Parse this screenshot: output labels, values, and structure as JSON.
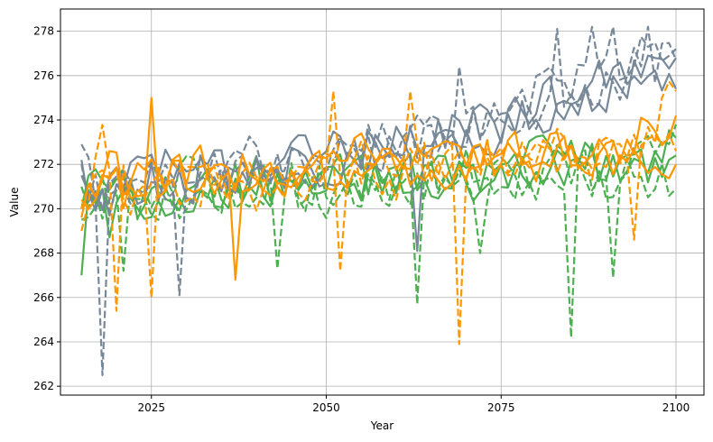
{
  "chart_data": {
    "type": "line",
    "title": "",
    "xlabel": "Year",
    "ylabel": "Value",
    "xlim": [
      2012,
      2104
    ],
    "ylim": [
      261.6,
      279.0
    ],
    "xticks": [
      2025,
      2050,
      2075,
      2100
    ],
    "yticks": [
      262,
      264,
      266,
      268,
      270,
      272,
      274,
      276,
      278
    ],
    "grid": true,
    "legend": "none",
    "colors": {
      "green": "#4caf50",
      "orange": "#ff9800",
      "gray": "#778899"
    },
    "series": [
      {
        "color": "#4caf50",
        "style": "solid",
        "anchors": [
          [
            2015,
            267.0
          ],
          [
            2016,
            270.8
          ],
          [
            2017,
            271.4
          ],
          [
            2019,
            269.5
          ],
          [
            2022,
            270.6
          ],
          [
            2025,
            270.2
          ],
          [
            2030,
            271.0
          ],
          [
            2035,
            270.8
          ],
          [
            2040,
            271.3
          ],
          [
            2045,
            271.0
          ],
          [
            2050,
            270.9
          ],
          [
            2055,
            271.3
          ],
          [
            2060,
            271.5
          ],
          [
            2065,
            271.4
          ],
          [
            2070,
            271.8
          ],
          [
            2075,
            271.5
          ],
          [
            2080,
            272.0
          ],
          [
            2085,
            271.6
          ],
          [
            2090,
            272.0
          ],
          [
            2095,
            271.8
          ],
          [
            2100,
            272.4
          ]
        ]
      },
      {
        "color": "#4caf50",
        "style": "solid",
        "anchors": [
          [
            2015,
            270.0
          ],
          [
            2018,
            271.0
          ],
          [
            2022,
            270.4
          ],
          [
            2025,
            270.8
          ],
          [
            2030,
            270.5
          ],
          [
            2035,
            271.2
          ],
          [
            2040,
            270.8
          ],
          [
            2045,
            271.4
          ],
          [
            2050,
            271.0
          ],
          [
            2055,
            271.4
          ],
          [
            2060,
            271.2
          ],
          [
            2065,
            271.6
          ],
          [
            2070,
            271.3
          ],
          [
            2075,
            271.9
          ],
          [
            2080,
            271.5
          ],
          [
            2085,
            272.1
          ],
          [
            2090,
            271.8
          ],
          [
            2095,
            272.3
          ],
          [
            2100,
            273.2
          ]
        ]
      },
      {
        "color": "#4caf50",
        "style": "dashed",
        "anchors": [
          [
            2015,
            271.0
          ],
          [
            2018,
            270.3
          ],
          [
            2022,
            270.8
          ],
          [
            2025,
            270.1
          ],
          [
            2030,
            271.3
          ],
          [
            2035,
            270.5
          ],
          [
            2040,
            271.1
          ],
          [
            2045,
            270.7
          ],
          [
            2050,
            271.3
          ],
          [
            2055,
            271.0
          ],
          [
            2060,
            271.5
          ],
          [
            2065,
            271.1
          ],
          [
            2070,
            271.7
          ],
          [
            2075,
            271.3
          ],
          [
            2080,
            271.8
          ],
          [
            2085,
            271.2
          ],
          [
            2090,
            271.7
          ],
          [
            2095,
            271.5
          ],
          [
            2100,
            270.9
          ]
        ],
        "dips": [
          [
            2063,
            265.7
          ],
          [
            2085,
            264.2
          ],
          [
            2091,
            266.9
          ]
        ]
      },
      {
        "color": "#4caf50",
        "style": "dashed",
        "anchors": [
          [
            2015,
            269.5
          ],
          [
            2018,
            270.6
          ],
          [
            2022,
            270.0
          ],
          [
            2025,
            270.9
          ],
          [
            2030,
            270.4
          ],
          [
            2035,
            271.0
          ],
          [
            2040,
            270.6
          ],
          [
            2045,
            271.2
          ],
          [
            2050,
            270.8
          ],
          [
            2055,
            271.3
          ],
          [
            2060,
            271.0
          ],
          [
            2065,
            271.5
          ],
          [
            2070,
            271.2
          ],
          [
            2075,
            271.7
          ],
          [
            2080,
            271.3
          ],
          [
            2085,
            271.8
          ],
          [
            2090,
            271.5
          ],
          [
            2095,
            272.0
          ],
          [
            2100,
            273.8
          ]
        ],
        "dips": [
          [
            2021,
            267.2
          ],
          [
            2043,
            267.3
          ],
          [
            2072,
            268.0
          ]
        ]
      },
      {
        "color": "#ff9800",
        "style": "solid",
        "anchors": [
          [
            2015,
            269.6
          ],
          [
            2018,
            271.5
          ],
          [
            2022,
            270.8
          ],
          [
            2025,
            271.5
          ],
          [
            2030,
            271.2
          ],
          [
            2035,
            271.6
          ],
          [
            2040,
            271.3
          ],
          [
            2045,
            271.8
          ],
          [
            2050,
            271.5
          ],
          [
            2055,
            272.0
          ],
          [
            2060,
            271.7
          ],
          [
            2065,
            272.2
          ],
          [
            2070,
            271.9
          ],
          [
            2075,
            272.4
          ],
          [
            2080,
            272.1
          ],
          [
            2085,
            272.6
          ],
          [
            2090,
            272.4
          ],
          [
            2095,
            272.9
          ],
          [
            2100,
            272.0
          ]
        ],
        "dips": [
          [
            2037,
            266.8
          ]
        ]
      },
      {
        "color": "#ff9800",
        "style": "solid",
        "anchors": [
          [
            2015,
            270.4
          ],
          [
            2018,
            272.3
          ],
          [
            2022,
            271.0
          ],
          [
            2025,
            271.9
          ],
          [
            2030,
            271.4
          ],
          [
            2035,
            271.9
          ],
          [
            2040,
            271.5
          ],
          [
            2045,
            272.1
          ],
          [
            2050,
            271.7
          ],
          [
            2055,
            272.3
          ],
          [
            2060,
            271.9
          ],
          [
            2065,
            272.5
          ],
          [
            2070,
            272.2
          ],
          [
            2075,
            272.7
          ],
          [
            2080,
            272.4
          ],
          [
            2085,
            272.9
          ],
          [
            2090,
            272.7
          ],
          [
            2095,
            273.2
          ],
          [
            2100,
            274.2
          ]
        ],
        "peaks": [
          [
            2025,
            275.0
          ]
        ]
      },
      {
        "color": "#ff9800",
        "style": "dashed",
        "anchors": [
          [
            2015,
            269.0
          ],
          [
            2018,
            272.5
          ],
          [
            2022,
            270.9
          ],
          [
            2025,
            271.7
          ],
          [
            2030,
            271.2
          ],
          [
            2035,
            271.8
          ],
          [
            2040,
            271.4
          ],
          [
            2045,
            272.0
          ],
          [
            2050,
            271.6
          ],
          [
            2055,
            272.1
          ],
          [
            2060,
            271.8
          ],
          [
            2065,
            272.4
          ],
          [
            2070,
            272.0
          ],
          [
            2075,
            272.5
          ],
          [
            2080,
            272.2
          ],
          [
            2085,
            272.7
          ],
          [
            2090,
            272.5
          ],
          [
            2095,
            273.0
          ],
          [
            2100,
            275.3
          ]
        ],
        "dips": [
          [
            2020,
            265.4
          ],
          [
            2025,
            266.0
          ],
          [
            2069,
            263.9
          ]
        ],
        "peaks": [
          [
            2051,
            275.3
          ],
          [
            2062,
            275.3
          ]
        ]
      },
      {
        "color": "#ff9800",
        "style": "dashed",
        "anchors": [
          [
            2015,
            270.0
          ],
          [
            2018,
            271.3
          ],
          [
            2022,
            270.6
          ],
          [
            2025,
            271.4
          ],
          [
            2030,
            270.9
          ],
          [
            2035,
            271.5
          ],
          [
            2040,
            271.1
          ],
          [
            2045,
            271.7
          ],
          [
            2050,
            271.3
          ],
          [
            2055,
            271.8
          ],
          [
            2060,
            271.5
          ],
          [
            2065,
            272.0
          ],
          [
            2070,
            271.7
          ],
          [
            2075,
            272.2
          ],
          [
            2080,
            271.9
          ],
          [
            2085,
            272.4
          ],
          [
            2090,
            272.2
          ],
          [
            2095,
            272.7
          ],
          [
            2100,
            272.6
          ]
        ],
        "dips": [
          [
            2052,
            267.2
          ],
          [
            2094,
            268.6
          ]
        ]
      },
      {
        "color": "#778899",
        "style": "solid",
        "anchors": [
          [
            2015,
            272.2
          ],
          [
            2018,
            270.5
          ],
          [
            2022,
            271.2
          ],
          [
            2025,
            271.8
          ],
          [
            2030,
            271.5
          ],
          [
            2035,
            271.9
          ],
          [
            2040,
            272.1
          ],
          [
            2045,
            272.3
          ],
          [
            2050,
            272.5
          ],
          [
            2055,
            272.8
          ],
          [
            2060,
            273.0
          ],
          [
            2065,
            273.2
          ],
          [
            2070,
            273.5
          ],
          [
            2075,
            274.0
          ],
          [
            2080,
            274.6
          ],
          [
            2085,
            275.2
          ],
          [
            2090,
            275.6
          ],
          [
            2095,
            276.0
          ],
          [
            2100,
            275.4
          ]
        ]
      },
      {
        "color": "#778899",
        "style": "solid",
        "anchors": [
          [
            2015,
            271.5
          ],
          [
            2018,
            269.8
          ],
          [
            2022,
            270.9
          ],
          [
            2025,
            271.3
          ],
          [
            2030,
            271.0
          ],
          [
            2035,
            271.5
          ],
          [
            2040,
            271.7
          ],
          [
            2045,
            272.0
          ],
          [
            2050,
            272.2
          ],
          [
            2055,
            272.6
          ],
          [
            2060,
            272.7
          ],
          [
            2065,
            273.0
          ],
          [
            2070,
            273.2
          ],
          [
            2075,
            273.6
          ],
          [
            2080,
            274.2
          ],
          [
            2085,
            274.8
          ],
          [
            2090,
            275.3
          ],
          [
            2095,
            275.9
          ],
          [
            2100,
            276.8
          ]
        ],
        "dips": [
          [
            2063,
            268.1
          ]
        ]
      },
      {
        "color": "#778899",
        "style": "dashed",
        "anchors": [
          [
            2015,
            272.9
          ],
          [
            2018,
            270.2
          ],
          [
            2022,
            271.0
          ],
          [
            2025,
            271.9
          ],
          [
            2030,
            271.4
          ],
          [
            2035,
            272.0
          ],
          [
            2040,
            272.2
          ],
          [
            2045,
            272.5
          ],
          [
            2050,
            272.6
          ],
          [
            2055,
            273.0
          ],
          [
            2060,
            273.1
          ],
          [
            2065,
            273.5
          ],
          [
            2070,
            273.8
          ],
          [
            2075,
            274.3
          ],
          [
            2080,
            275.3
          ],
          [
            2085,
            276.0
          ],
          [
            2090,
            276.6
          ],
          [
            2095,
            276.8
          ],
          [
            2100,
            277.2
          ]
        ],
        "dips": [
          [
            2018,
            262.5
          ],
          [
            2029,
            266.1
          ]
        ],
        "peaks": [
          [
            2088,
            278.2
          ],
          [
            2091,
            278.2
          ]
        ]
      },
      {
        "color": "#778899",
        "style": "dashed",
        "anchors": [
          [
            2015,
            272.0
          ],
          [
            2018,
            270.0
          ],
          [
            2022,
            270.6
          ],
          [
            2025,
            271.5
          ],
          [
            2030,
            271.2
          ],
          [
            2035,
            271.7
          ],
          [
            2040,
            271.9
          ],
          [
            2045,
            272.2
          ],
          [
            2050,
            272.4
          ],
          [
            2055,
            272.7
          ],
          [
            2060,
            272.9
          ],
          [
            2065,
            273.2
          ],
          [
            2070,
            273.4
          ],
          [
            2075,
            273.9
          ],
          [
            2080,
            274.6
          ],
          [
            2085,
            275.3
          ],
          [
            2090,
            275.8
          ],
          [
            2095,
            276.4
          ],
          [
            2100,
            276.7
          ]
        ],
        "peaks": [
          [
            2083,
            278.1
          ],
          [
            2096,
            278.2
          ],
          [
            2069,
            276.4
          ]
        ]
      }
    ]
  }
}
